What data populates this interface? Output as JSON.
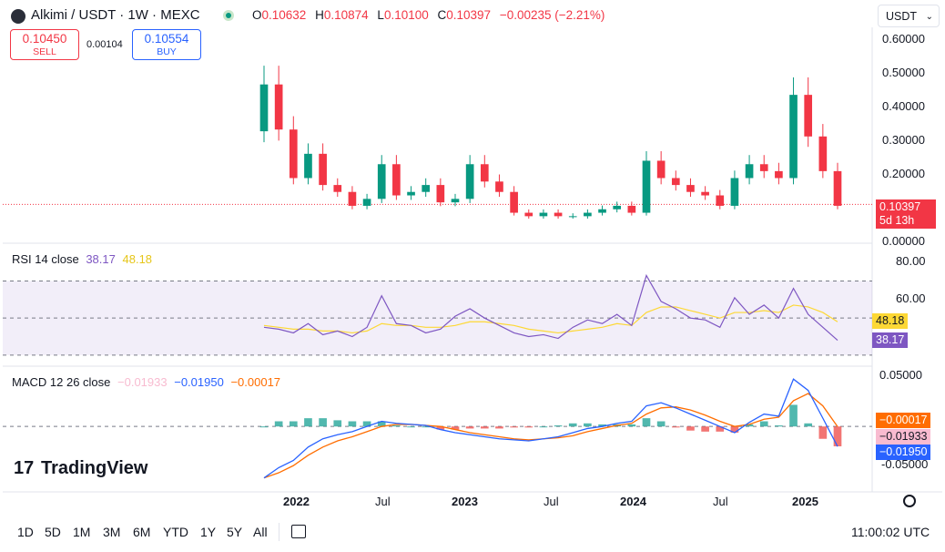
{
  "header": {
    "title": "Alkimi / USDT · 1W · MEXC",
    "ohlc": [
      {
        "k": "O",
        "v": "0.10632"
      },
      {
        "k": "H",
        "v": "0.10874"
      },
      {
        "k": "L",
        "v": "0.10100"
      },
      {
        "k": "C",
        "v": "0.10397"
      },
      {
        "k": "",
        "v": "−0.00235 (−2.21%)"
      }
    ],
    "sell_price": "0.10450",
    "sell_label": "SELL",
    "spread": "0.00104",
    "buy_price": "0.10554",
    "buy_label": "BUY",
    "currency": "USDT"
  },
  "colors": {
    "up": "#089981",
    "down": "#f23645",
    "rsi": "#7e57c2",
    "rsi_ma": "#fdd835",
    "macd": "#2962ff",
    "signal": "#ff6d00",
    "rsi_band": "#7e57c2"
  },
  "price_axis": [
    "0.60000",
    "0.50000",
    "0.40000",
    "0.30000",
    "0.20000",
    "0.00000"
  ],
  "last_price": {
    "value": "0.10397",
    "countdown": "5d 13h"
  },
  "rsi": {
    "title": "RSI 14 close",
    "value": "38.17",
    "ma": "48.18",
    "axis": [
      "80.00",
      "60.00"
    ]
  },
  "macd": {
    "title": "MACD 12 26 close",
    "hist": "−0.01933",
    "macd": "−0.01950",
    "signal": "−0.00017",
    "axis": [
      "0.05000",
      "-0.05000"
    ]
  },
  "time_axis": [
    "2022",
    "Jul",
    "2023",
    "Jul",
    "2024",
    "Jul",
    "2025"
  ],
  "toolbar": {
    "ranges": [
      "1D",
      "5D",
      "1M",
      "3M",
      "6M",
      "YTD",
      "1Y",
      "5Y",
      "All"
    ],
    "clock": "11:00:02 UTC"
  },
  "brand": "TradingView",
  "chart_data": [
    {
      "type": "candlestick",
      "title": "Alkimi / USDT · 1W · MEXC",
      "x": [
        "2021-11",
        "2021-12",
        "2022-01",
        "2022-02",
        "2022-03",
        "2022-04",
        "2022-05",
        "2022-06",
        "2022-07",
        "2022-08",
        "2022-09",
        "2022-10",
        "2022-11",
        "2022-12",
        "2023-01",
        "2023-02",
        "2023-03",
        "2023-04",
        "2023-05",
        "2023-06",
        "2023-07",
        "2023-08",
        "2023-09",
        "2023-10",
        "2023-11",
        "2023-12",
        "2024-01",
        "2024-02",
        "2024-03",
        "2024-04",
        "2024-05",
        "2024-06",
        "2024-07",
        "2024-08",
        "2024-09",
        "2024-10",
        "2024-11",
        "2024-12",
        "2025-01",
        "2025-02"
      ],
      "close": [
        0.45,
        0.32,
        0.18,
        0.25,
        0.16,
        0.14,
        0.1,
        0.12,
        0.22,
        0.13,
        0.14,
        0.16,
        0.11,
        0.12,
        0.22,
        0.17,
        0.14,
        0.08,
        0.07,
        0.08,
        0.07,
        0.07,
        0.08,
        0.09,
        0.1,
        0.08,
        0.23,
        0.18,
        0.16,
        0.14,
        0.13,
        0.1,
        0.18,
        0.22,
        0.2,
        0.18,
        0.42,
        0.3,
        0.2,
        0.1
      ],
      "ylim": [
        0,
        0.62
      ]
    },
    {
      "type": "line",
      "title": "RSI 14 close",
      "series": [
        {
          "name": "RSI",
          "values": [
            45,
            44,
            42,
            47,
            41,
            43,
            40,
            45,
            62,
            47,
            46,
            42,
            44,
            51,
            55,
            50,
            46,
            42,
            40,
            41,
            39,
            45,
            49,
            47,
            52,
            46,
            73,
            59,
            55,
            50,
            49,
            45,
            61,
            52,
            57,
            50,
            66,
            52,
            45,
            38
          ]
        },
        {
          "name": "MA",
          "values": [
            46,
            45,
            44,
            44,
            43,
            43,
            42,
            43,
            47,
            46,
            46,
            45,
            45,
            46,
            48,
            48,
            47,
            46,
            44,
            43,
            42,
            43,
            44,
            45,
            47,
            46,
            53,
            56,
            56,
            54,
            52,
            50,
            53,
            53,
            54,
            53,
            57,
            56,
            53,
            48
          ]
        }
      ],
      "ylim": [
        25,
        85
      ]
    },
    {
      "type": "line",
      "title": "MACD 12 26 close",
      "series": [
        {
          "name": "MACD",
          "values": [
            -0.05,
            -0.04,
            -0.033,
            -0.02,
            -0.012,
            -0.008,
            -0.005,
            0.0,
            0.005,
            0.003,
            0.002,
            0.001,
            -0.003,
            -0.006,
            -0.008,
            -0.01,
            -0.012,
            -0.013,
            -0.014,
            -0.012,
            -0.01,
            -0.006,
            -0.002,
            0.0,
            0.003,
            0.005,
            0.02,
            0.023,
            0.018,
            0.012,
            0.006,
            0.0,
            -0.006,
            0.004,
            0.012,
            0.01,
            0.046,
            0.035,
            0.008,
            -0.0195
          ]
        },
        {
          "name": "Signal",
          "values": [
            -0.05,
            -0.045,
            -0.038,
            -0.028,
            -0.02,
            -0.014,
            -0.01,
            -0.005,
            0.0,
            0.002,
            0.002,
            0.001,
            0.0,
            -0.003,
            -0.006,
            -0.008,
            -0.01,
            -0.012,
            -0.013,
            -0.012,
            -0.011,
            -0.009,
            -0.005,
            -0.002,
            0.001,
            0.003,
            0.012,
            0.018,
            0.019,
            0.016,
            0.011,
            0.005,
            0.0,
            0.002,
            0.007,
            0.009,
            0.025,
            0.032,
            0.02,
            -0.0002
          ]
        }
      ],
      "ylim": [
        -0.06,
        0.055
      ]
    }
  ]
}
